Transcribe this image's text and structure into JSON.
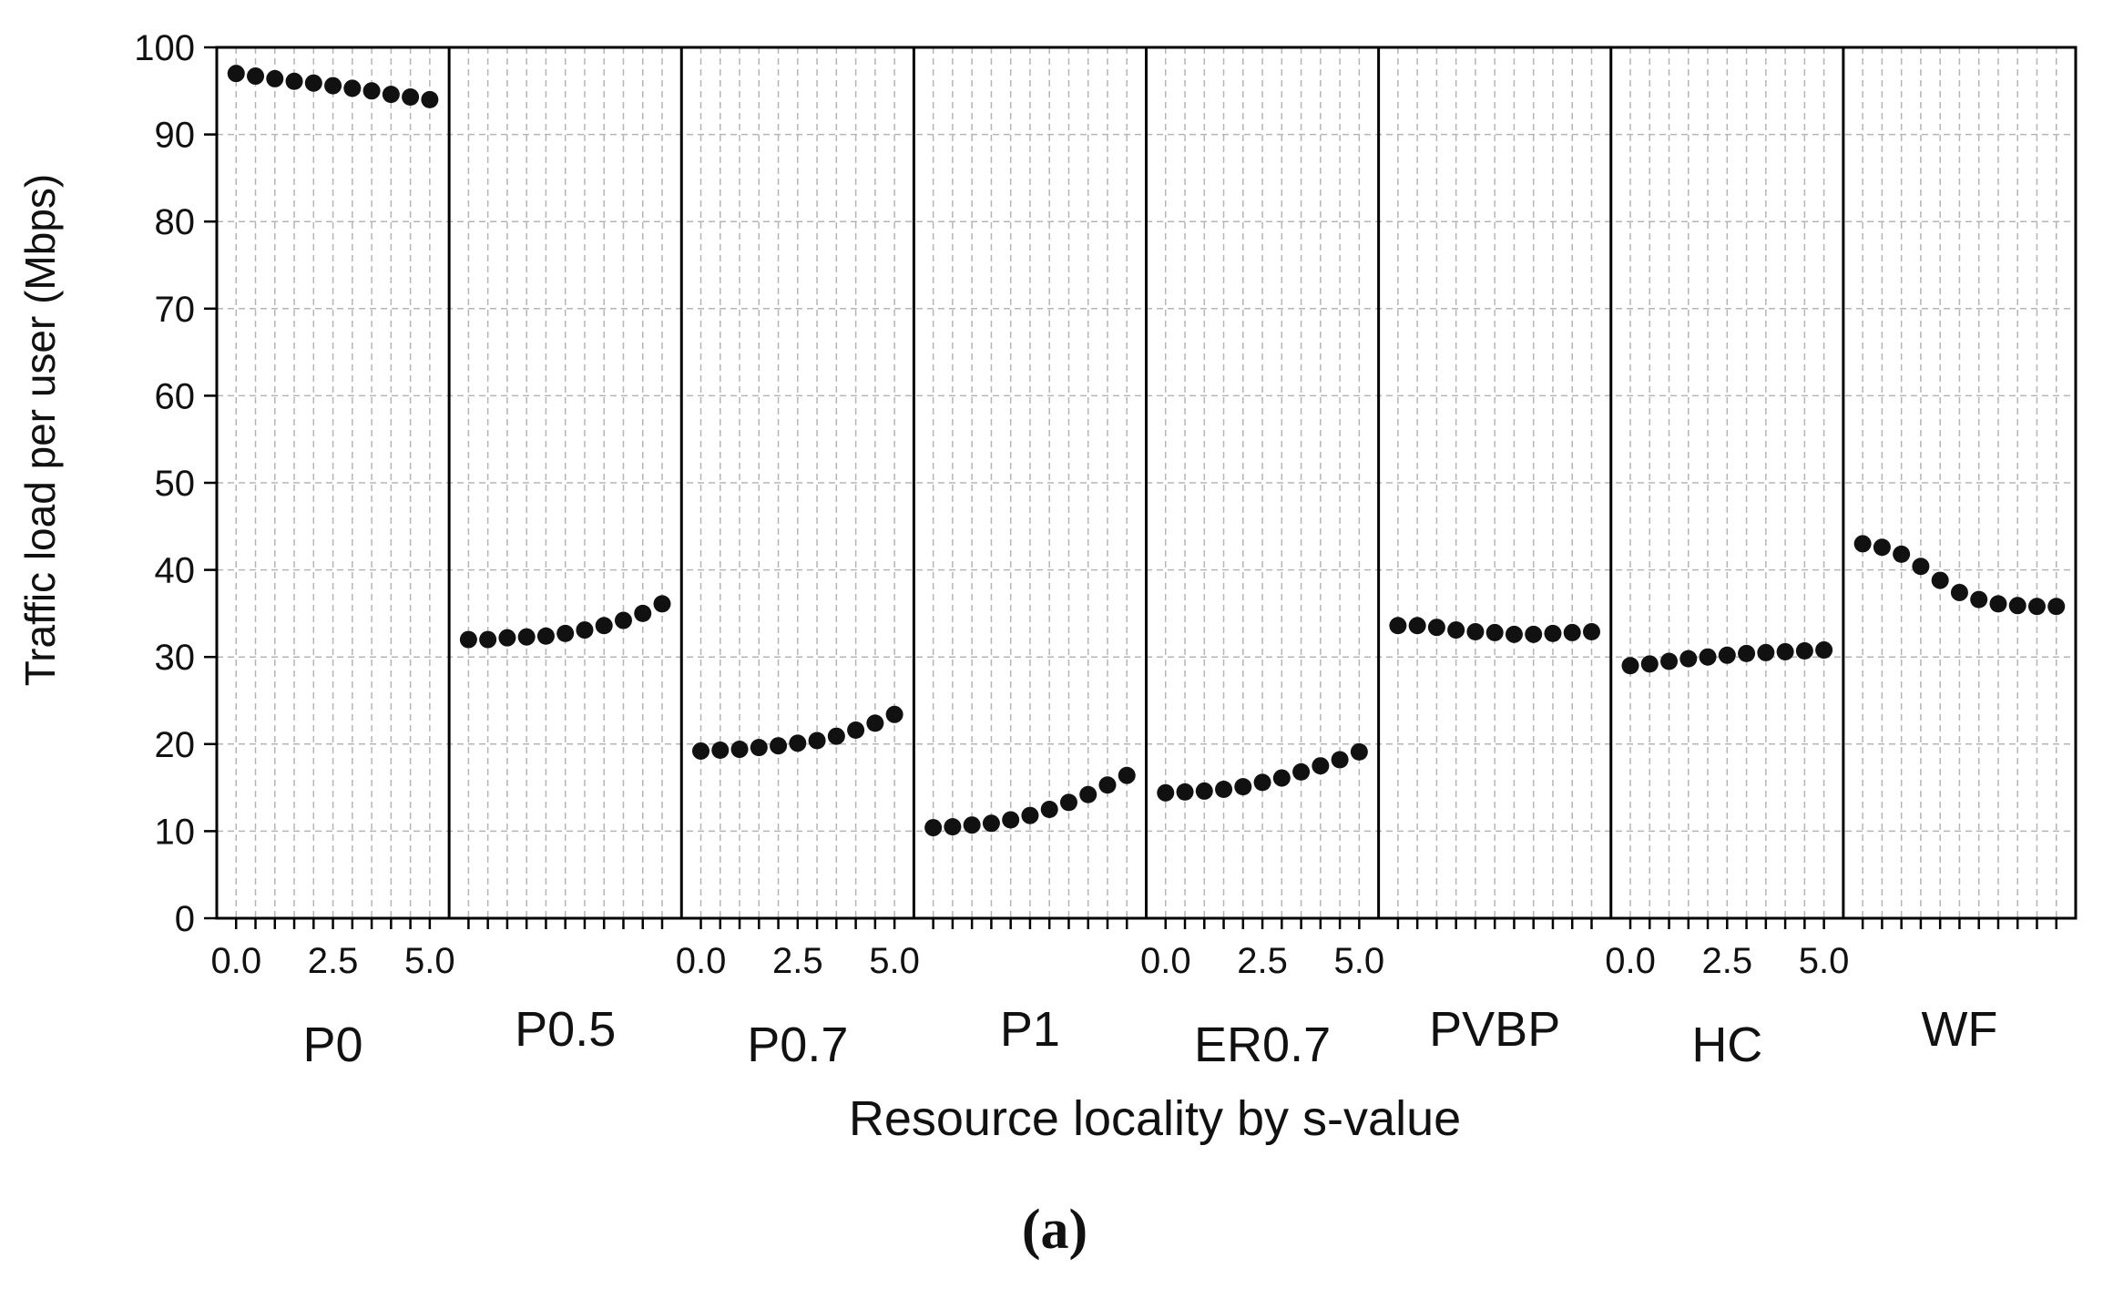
{
  "chart_data": {
    "type": "scatter",
    "xlabel": "Resource locality by s-value",
    "ylabel": "Traffic load per user (Mbps)",
    "caption": "(a)",
    "ylim": [
      0,
      100
    ],
    "yticks": [
      "0",
      "10",
      "20",
      "30",
      "40",
      "50",
      "60",
      "70",
      "80",
      "90",
      "100"
    ],
    "xlim": [
      -0.5,
      5.5
    ],
    "xticks": [
      "0.0",
      "2.5",
      "5.0"
    ],
    "x": [
      0.0,
      0.5,
      1.0,
      1.5,
      2.0,
      2.5,
      3.0,
      3.5,
      4.0,
      4.5,
      5.0
    ],
    "grid": true,
    "series": [
      {
        "name": "P0",
        "show_xticks": true,
        "values": [
          97.0,
          96.7,
          96.4,
          96.1,
          95.9,
          95.6,
          95.3,
          95.0,
          94.6,
          94.3,
          94.0
        ]
      },
      {
        "name": "P0.5",
        "show_xticks": false,
        "values": [
          32.0,
          32.0,
          32.2,
          32.3,
          32.4,
          32.7,
          33.1,
          33.6,
          34.2,
          35.0,
          36.1
        ]
      },
      {
        "name": "P0.7",
        "show_xticks": true,
        "values": [
          19.2,
          19.3,
          19.4,
          19.6,
          19.8,
          20.1,
          20.4,
          20.9,
          21.6,
          22.4,
          23.4
        ]
      },
      {
        "name": "P1",
        "show_xticks": false,
        "values": [
          10.4,
          10.5,
          10.7,
          10.9,
          11.3,
          11.8,
          12.5,
          13.3,
          14.2,
          15.3,
          16.4
        ]
      },
      {
        "name": "ER0.7",
        "show_xticks": true,
        "values": [
          14.4,
          14.5,
          14.6,
          14.8,
          15.1,
          15.6,
          16.1,
          16.8,
          17.5,
          18.2,
          19.1
        ]
      },
      {
        "name": "PVBP",
        "show_xticks": false,
        "values": [
          33.6,
          33.6,
          33.4,
          33.1,
          32.9,
          32.8,
          32.6,
          32.6,
          32.7,
          32.8,
          32.9
        ]
      },
      {
        "name": "HC",
        "show_xticks": true,
        "values": [
          29.0,
          29.2,
          29.5,
          29.8,
          30.0,
          30.2,
          30.4,
          30.5,
          30.6,
          30.7,
          30.8
        ]
      },
      {
        "name": "WF",
        "show_xticks": false,
        "values": [
          43.0,
          42.6,
          41.8,
          40.4,
          38.8,
          37.4,
          36.6,
          36.1,
          35.9,
          35.8,
          35.8
        ]
      }
    ]
  }
}
